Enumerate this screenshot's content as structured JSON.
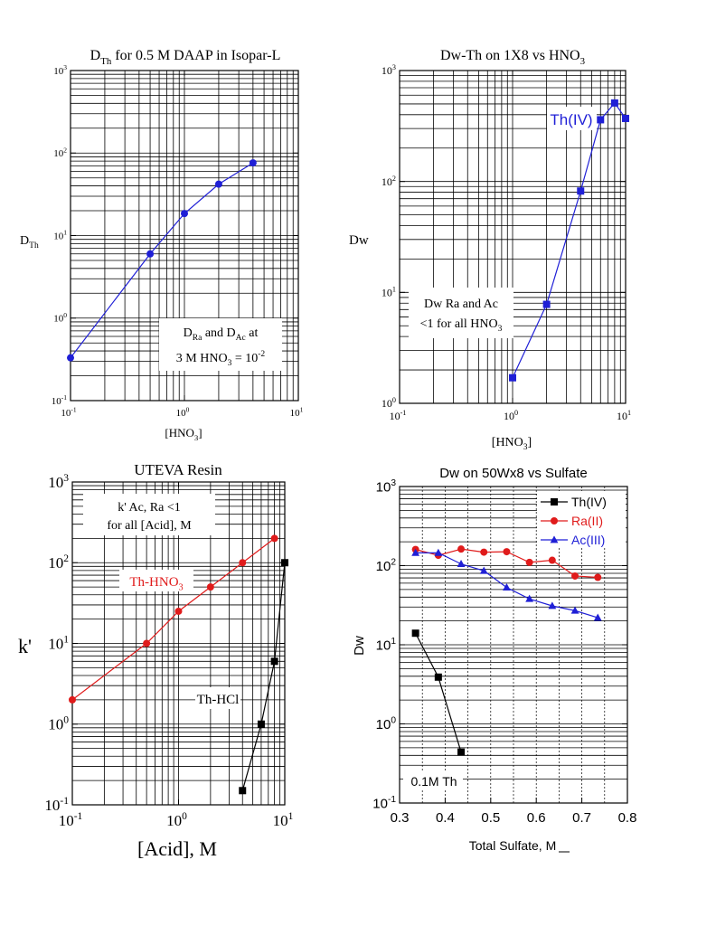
{
  "chart_data": [
    {
      "type": "line",
      "title": "D",
      "title_sub": "Th",
      "title_rest": "  for 0.5 M DAAP in Isopar-L",
      "ylabel": "D",
      "ylabel_sub": "Th",
      "xlabel": "[HNO",
      "xlabel_sub": "3",
      "xlabel_end": "]",
      "xscale": "log",
      "yscale": "log",
      "xlim": [
        0.1,
        10
      ],
      "ylim": [
        0.1,
        1000
      ],
      "xticks": [
        {
          "base": "10",
          "exp": "-1"
        },
        {
          "base": "10",
          "exp": "0"
        },
        {
          "base": "10",
          "exp": "1"
        }
      ],
      "yticks": [
        {
          "base": "10",
          "exp": "-1"
        },
        {
          "base": "10",
          "exp": "0"
        },
        {
          "base": "10",
          "exp": "1"
        },
        {
          "base": "10",
          "exp": "2"
        },
        {
          "base": "10",
          "exp": "3"
        }
      ],
      "grid": true,
      "series": [
        {
          "color": "#1f1fd6",
          "marker": "circle",
          "x": [
            0.1,
            0.5,
            1,
            2,
            4
          ],
          "y": [
            0.33,
            6.0,
            18.5,
            42,
            76
          ]
        }
      ],
      "annotation": {
        "line1": {
          "a": "D",
          "a_sub": "Ra",
          "b": " and D",
          "b_sub": "Ac",
          "c": " at"
        },
        "line2": {
          "a": "3 M HNO",
          "a_sub": "3",
          "b": " = 10",
          "b_sup": "-2"
        }
      }
    },
    {
      "type": "line",
      "title": "Dw-Th on 1X8 vs HNO",
      "title_sub": "3",
      "ylabel": "Dw",
      "xlabel": "[HNO",
      "xlabel_sub": "3",
      "xlabel_end": "]",
      "xscale": "log",
      "yscale": "log",
      "xlim": [
        0.1,
        10
      ],
      "ylim": [
        1,
        1000
      ],
      "xticks": [
        {
          "base": "10",
          "exp": "-1"
        },
        {
          "base": "10",
          "exp": "0"
        },
        {
          "base": "10",
          "exp": "1"
        }
      ],
      "yticks": [
        {
          "base": "10",
          "exp": "0"
        },
        {
          "base": "10",
          "exp": "1"
        },
        {
          "base": "10",
          "exp": "2"
        },
        {
          "base": "10",
          "exp": "3"
        }
      ],
      "grid": true,
      "series": [
        {
          "name": "Th(IV)",
          "color": "#1f1fd6",
          "marker": "square",
          "x": [
            1,
            2,
            4,
            6,
            8,
            10
          ],
          "y": [
            1.7,
            7.8,
            82,
            360,
            510,
            370
          ]
        }
      ],
      "annotation": {
        "line1": "Dw Ra and Ac",
        "line2": {
          "a": "<1 for all HNO",
          "a_sub": "3"
        }
      }
    },
    {
      "type": "line",
      "title": "UTEVA Resin",
      "ylabel": "k'",
      "xlabel": "[Acid], M",
      "xscale": "log",
      "yscale": "log",
      "xlim": [
        0.1,
        10
      ],
      "ylim": [
        0.1,
        1000
      ],
      "xticks": [
        {
          "base": "10",
          "exp": "-1"
        },
        {
          "base": "10",
          "exp": "0"
        },
        {
          "base": "10",
          "exp": "1"
        }
      ],
      "yticks": [
        {
          "base": "10",
          "exp": "-1"
        },
        {
          "base": "10",
          "exp": "0"
        },
        {
          "base": "10",
          "exp": "1"
        },
        {
          "base": "10",
          "exp": "2"
        },
        {
          "base": "10",
          "exp": "3"
        }
      ],
      "grid": true,
      "series": [
        {
          "name": "Th-HNO",
          "name_sub": "3",
          "color": "#e01b1b",
          "marker": "circle",
          "x": [
            0.1,
            0.5,
            1,
            2,
            4,
            8
          ],
          "y": [
            2,
            10,
            25,
            50,
            100,
            200
          ]
        },
        {
          "name": "Th-HCl",
          "color": "#000000",
          "marker": "square",
          "x": [
            4,
            6,
            8,
            10
          ],
          "y": [
            0.15,
            1.0,
            6.0,
            100
          ]
        }
      ],
      "annotation": {
        "line1": "k' Ac, Ra <1",
        "line2": "for all [Acid], M"
      }
    },
    {
      "type": "line",
      "title": "Dw on 50Wx8 vs Sulfate",
      "ylabel": "Dw",
      "xlabel": "Total Sulfate, M",
      "xscale": "linear",
      "yscale": "log",
      "xlim": [
        0.3,
        0.8
      ],
      "ylim": [
        0.1,
        1000
      ],
      "xticks": [
        "0.3",
        "0.4",
        "0.5",
        "0.6",
        "0.7",
        "0.8"
      ],
      "yticks": [
        {
          "base": "10",
          "exp": "-1"
        },
        {
          "base": "10",
          "exp": "0"
        },
        {
          "base": "10",
          "exp": "1"
        },
        {
          "base": "10",
          "exp": "2"
        },
        {
          "base": "10",
          "exp": "3"
        }
      ],
      "grid": true,
      "legend": "top-right",
      "series": [
        {
          "name": "Th(IV)",
          "color": "#000000",
          "marker": "square",
          "x": [
            0.335,
            0.385,
            0.435
          ],
          "y": [
            14,
            3.9,
            0.44
          ]
        },
        {
          "name": "Ra(II)",
          "color": "#e01b1b",
          "marker": "circle",
          "x": [
            0.335,
            0.385,
            0.435,
            0.485,
            0.535,
            0.585,
            0.635,
            0.685,
            0.735
          ],
          "y": [
            160,
            135,
            162,
            148,
            150,
            110,
            117,
            74,
            71
          ]
        },
        {
          "name": "Ac(III)",
          "color": "#1f1fd6",
          "marker": "triangle",
          "x": [
            0.335,
            0.385,
            0.435,
            0.485,
            0.535,
            0.585,
            0.635,
            0.685,
            0.735
          ],
          "y": [
            145,
            145,
            105,
            86,
            53,
            38,
            31,
            27,
            22
          ]
        }
      ],
      "annotation": "0.1M Th"
    }
  ]
}
